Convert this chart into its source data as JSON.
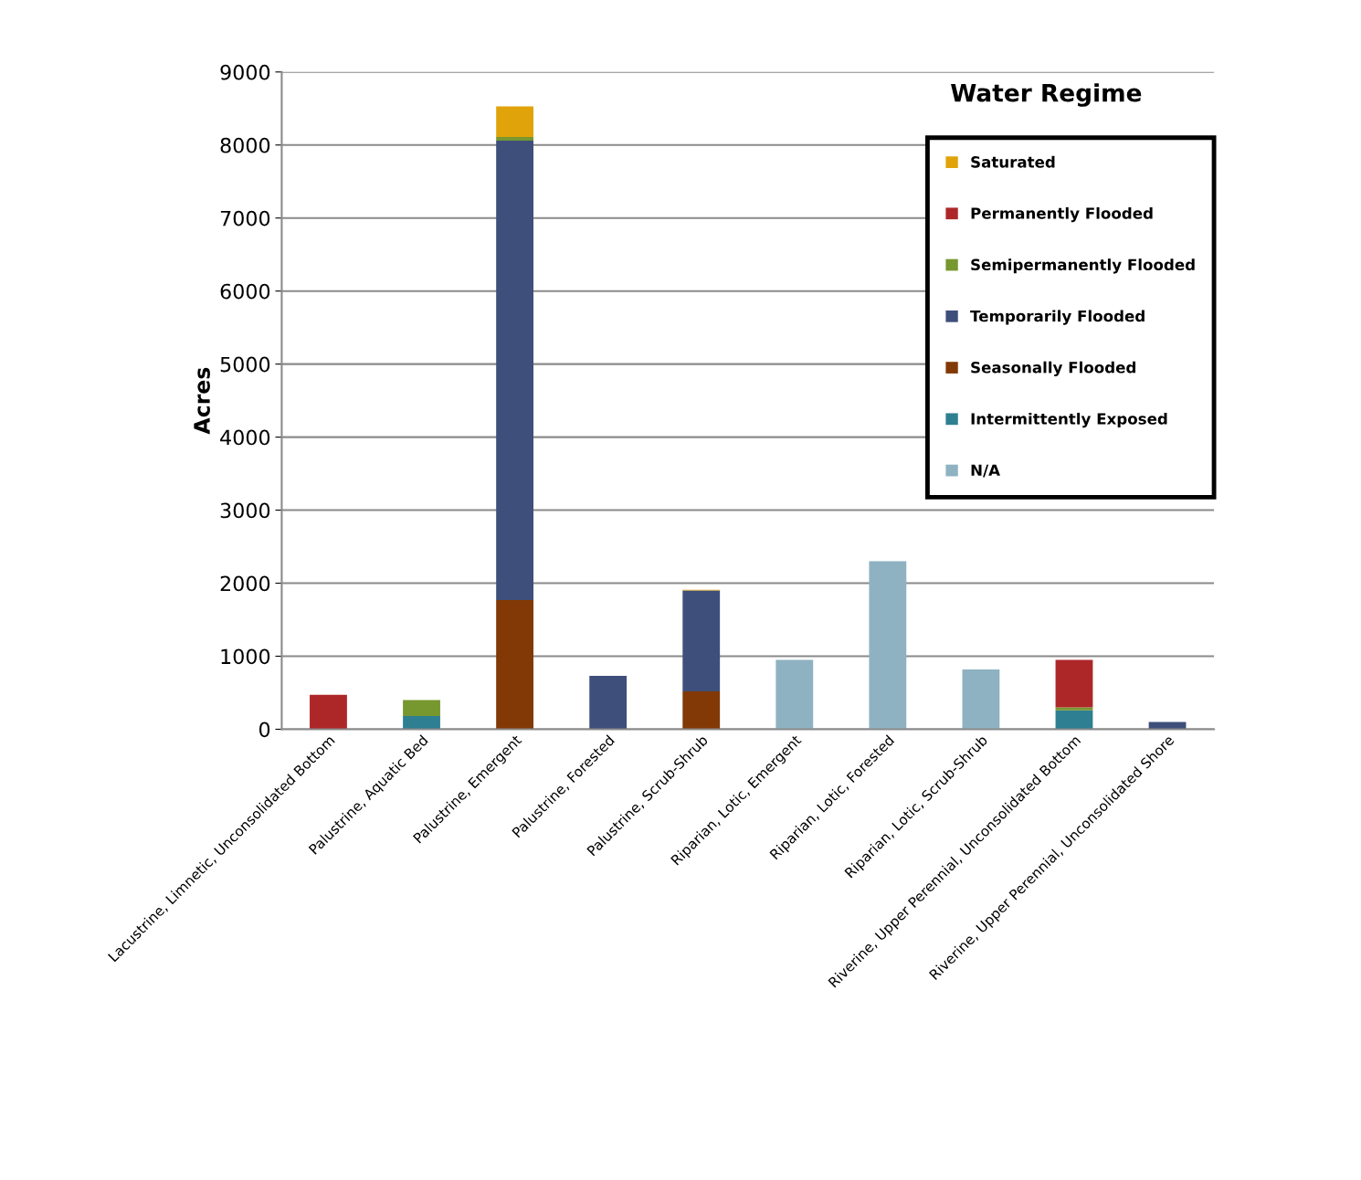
{
  "chart_data": {
    "type": "bar",
    "stacked": true,
    "ylabel": "Acres",
    "legend_title": "Water Regime",
    "legend": "top right",
    "grid": "y",
    "categories": [
      "Lacustrine, Limnetic, Unconsolidated Bottom",
      "Palustrine, Aquatic Bed",
      "Palustrine, Emergent",
      "Palustrine, Forested",
      "Palustrine, Scrub-Shrub",
      "Riparian, Lotic, Emergent",
      "Riparian, Lotic, Forested",
      "Riparian, Lotic, Scrub-Shrub",
      "Riverine, Upper Perennial, Unconsolidated Bottom",
      "Riverine, Upper Perennial, Unconsolidated Shore"
    ],
    "ylim": [
      0,
      9000
    ],
    "yticks": [
      0,
      1000,
      2000,
      3000,
      4000,
      5000,
      6000,
      7000,
      8000,
      9000
    ],
    "series": [
      {
        "name": "N/A",
        "color": "#8eb2c1",
        "values": [
          0,
          0,
          0,
          0,
          0,
          950,
          2300,
          820,
          0,
          0
        ]
      },
      {
        "name": "Intermittently Exposed",
        "color": "#2e7f91",
        "values": [
          0,
          180,
          0,
          0,
          0,
          0,
          0,
          0,
          260,
          0
        ]
      },
      {
        "name": "Seasonally Flooded",
        "color": "#823905",
        "values": [
          0,
          0,
          1770,
          0,
          520,
          0,
          0,
          0,
          0,
          0
        ]
      },
      {
        "name": "Temporarily Flooded",
        "color": "#3e4f7b",
        "values": [
          0,
          0,
          6290,
          730,
          1380,
          0,
          0,
          0,
          0,
          100
        ]
      },
      {
        "name": "Semipermanently Flooded",
        "color": "#77972f",
        "values": [
          0,
          220,
          50,
          0,
          0,
          0,
          0,
          0,
          40,
          0
        ]
      },
      {
        "name": "Permanently Flooded",
        "color": "#ad2729",
        "values": [
          470,
          0,
          0,
          0,
          0,
          0,
          0,
          0,
          650,
          0
        ]
      },
      {
        "name": "Saturated",
        "color": "#e0a30a",
        "values": [
          0,
          0,
          420,
          0,
          10,
          0,
          0,
          0,
          0,
          0
        ]
      }
    ]
  }
}
